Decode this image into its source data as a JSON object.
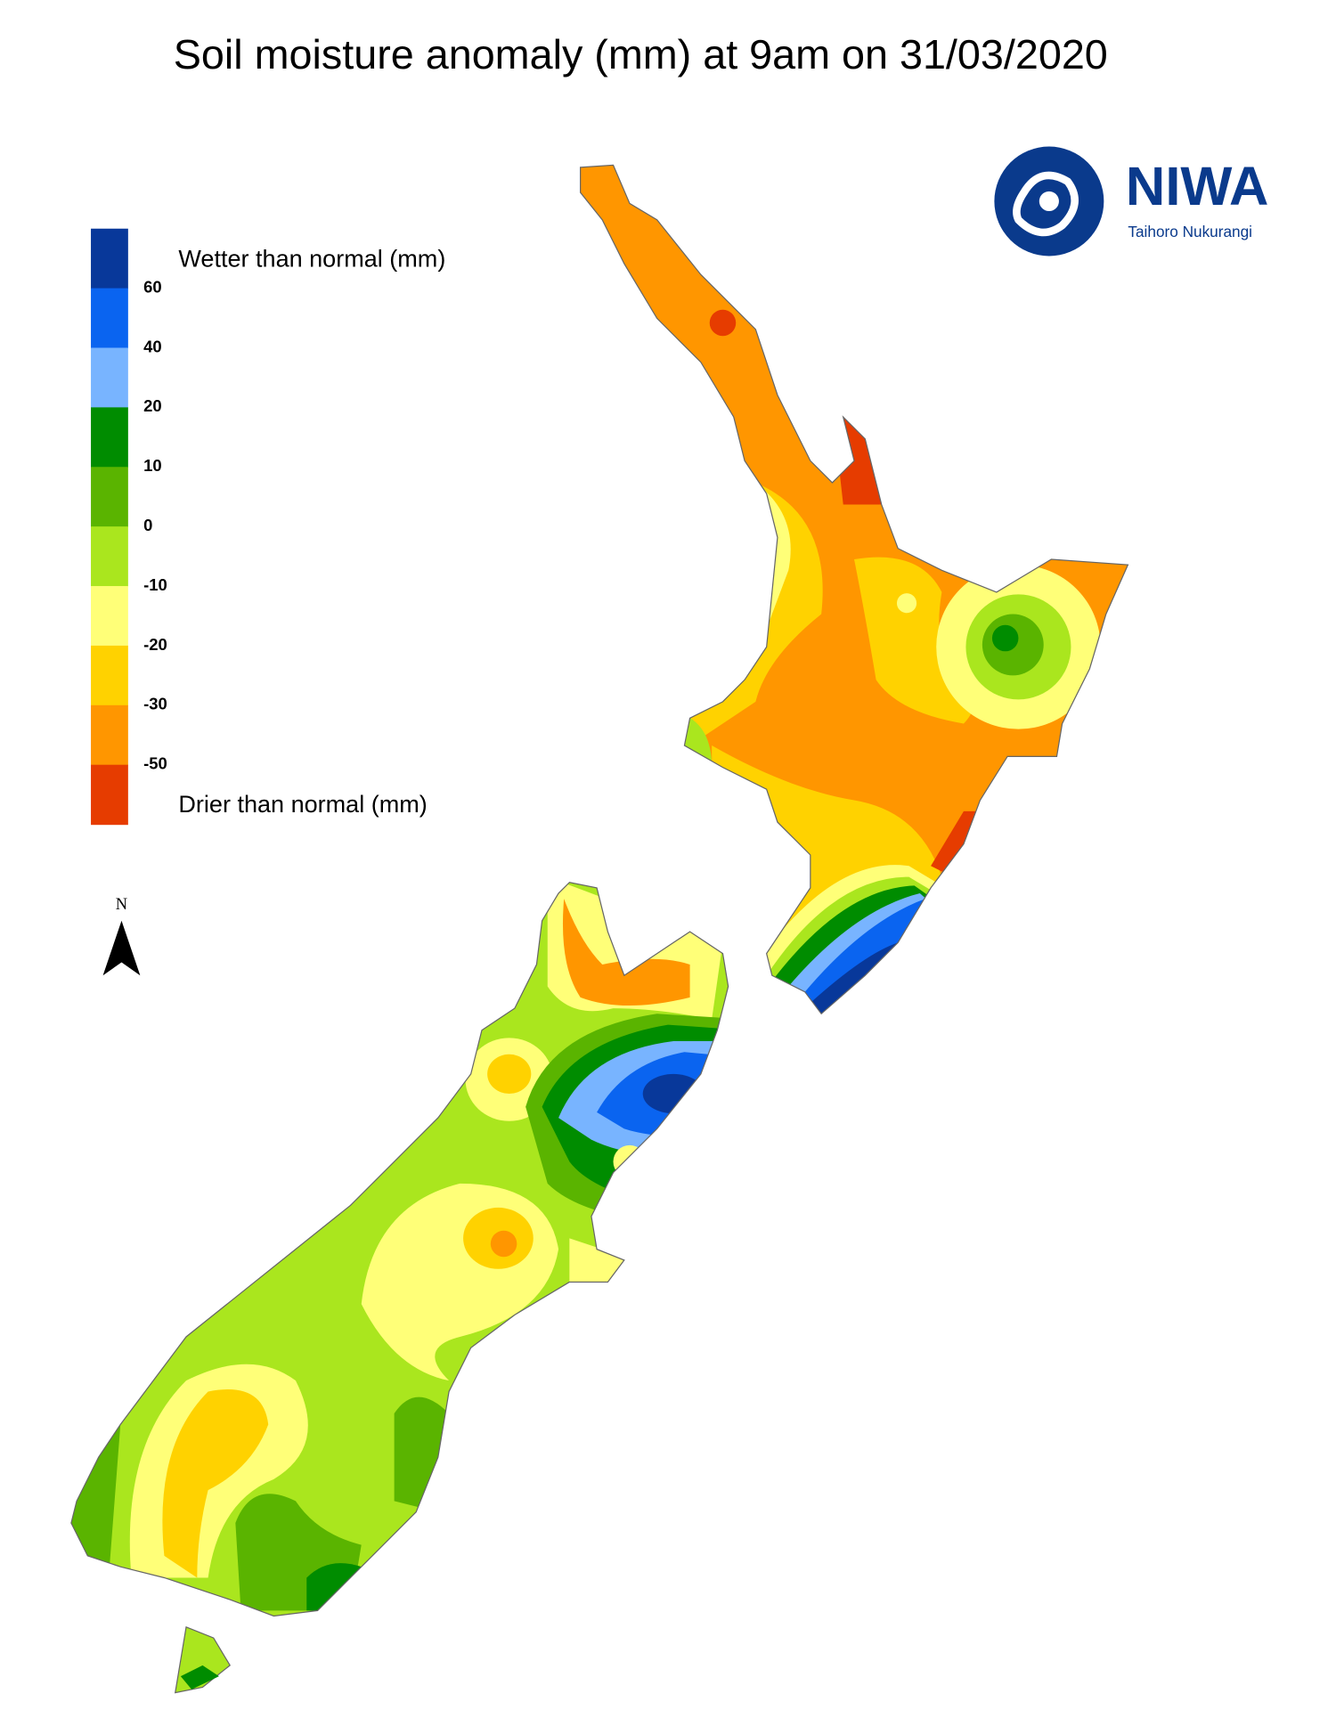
{
  "header": {
    "title": "Soil moisture anomaly (mm) at 9am on 31/03/2020"
  },
  "logo": {
    "name": "NIWA",
    "subtitle": "Taihoro Nukurangi"
  },
  "compass": {
    "label": "N"
  },
  "legend": {
    "wetter_label": "Wetter than normal (mm)",
    "drier_label": "Drier than normal (mm)",
    "colors": [
      "#08389a",
      "#0a64f0",
      "#78b4ff",
      "#008c00",
      "#5ab400",
      "#aae61e",
      "#ffff78",
      "#ffd200",
      "#ff9600",
      "#e63c00"
    ],
    "ticks": [
      60,
      40,
      20,
      10,
      0,
      -10,
      -20,
      -30,
      -50
    ]
  }
}
